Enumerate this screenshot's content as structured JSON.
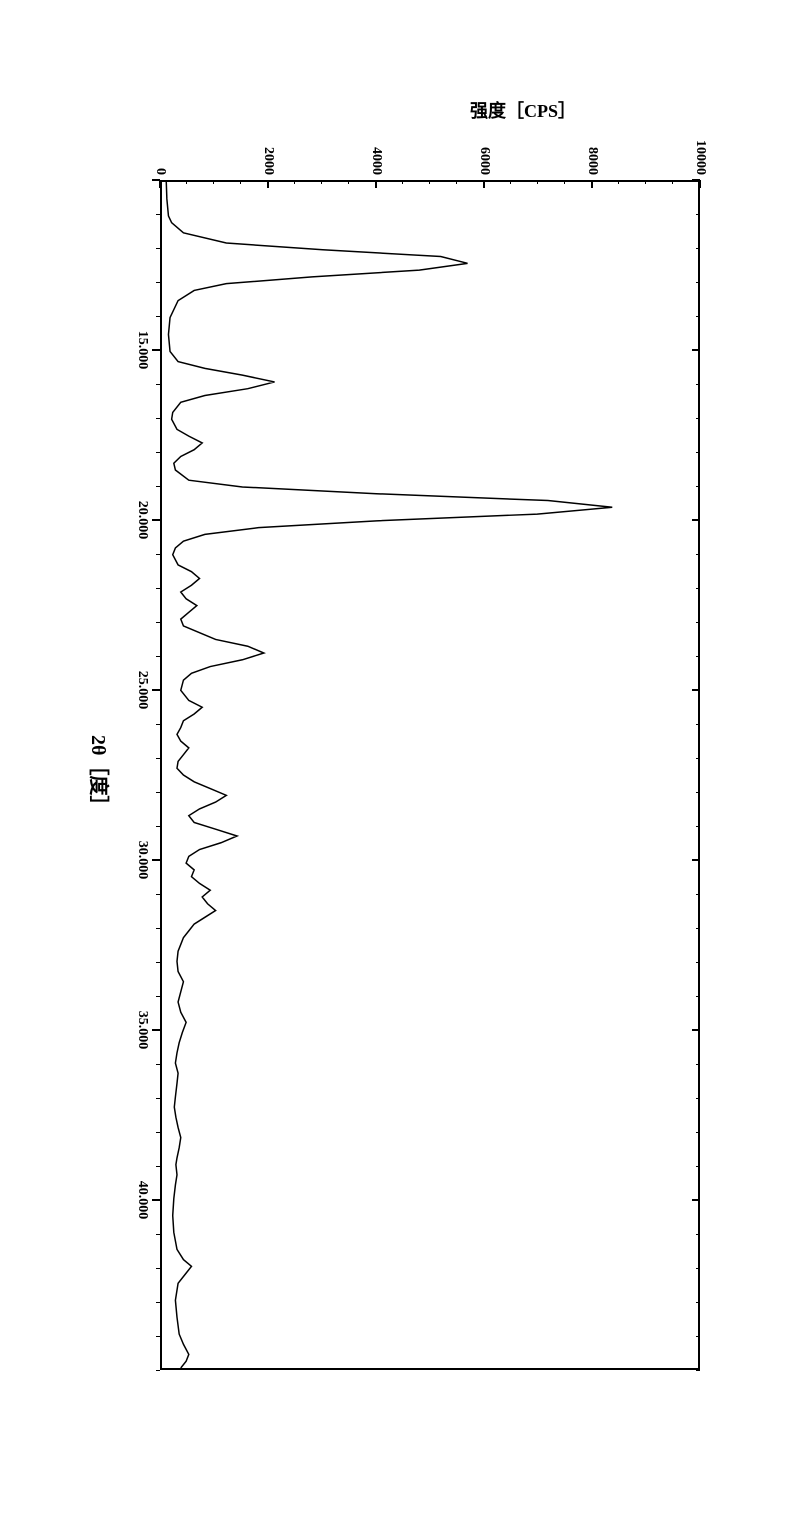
{
  "chart": {
    "type": "line",
    "xlabel": "2θ［度］",
    "ylabel": "强度［CPS］",
    "xlim": [
      10,
      45
    ],
    "ylim": [
      0,
      10000
    ],
    "xtick_major": [
      10,
      15,
      20,
      25,
      30,
      35,
      40
    ],
    "xtick_labels": [
      "",
      "15.000",
      "20.000",
      "25.000",
      "30.000",
      "35.000",
      "40.000"
    ],
    "ytick_major": [
      0,
      2000,
      4000,
      6000,
      8000,
      10000
    ],
    "ytick_labels": [
      "0",
      "2000",
      "4000",
      "6000",
      "8000",
      "10000"
    ],
    "line_color": "#000000",
    "background_color": "#ffffff",
    "border_color": "#000000",
    "line_width": 1.5,
    "xticks_minor_step": 1,
    "yticks_minor_step": 500,
    "data": [
      [
        10.0,
        80
      ],
      [
        10.5,
        90
      ],
      [
        11.0,
        120
      ],
      [
        11.2,
        180
      ],
      [
        11.5,
        400
      ],
      [
        11.8,
        1200
      ],
      [
        12.0,
        3000
      ],
      [
        12.2,
        5200
      ],
      [
        12.4,
        5700
      ],
      [
        12.6,
        4800
      ],
      [
        12.8,
        2800
      ],
      [
        13.0,
        1200
      ],
      [
        13.2,
        600
      ],
      [
        13.5,
        300
      ],
      [
        14.0,
        150
      ],
      [
        14.5,
        120
      ],
      [
        15.0,
        150
      ],
      [
        15.3,
        300
      ],
      [
        15.5,
        800
      ],
      [
        15.7,
        1500
      ],
      [
        15.9,
        2100
      ],
      [
        16.1,
        1600
      ],
      [
        16.3,
        800
      ],
      [
        16.5,
        350
      ],
      [
        16.8,
        200
      ],
      [
        17.0,
        180
      ],
      [
        17.3,
        280
      ],
      [
        17.5,
        500
      ],
      [
        17.7,
        750
      ],
      [
        17.9,
        600
      ],
      [
        18.1,
        350
      ],
      [
        18.3,
        220
      ],
      [
        18.5,
        250
      ],
      [
        18.8,
        500
      ],
      [
        19.0,
        1500
      ],
      [
        19.2,
        4000
      ],
      [
        19.4,
        7200
      ],
      [
        19.6,
        8400
      ],
      [
        19.8,
        7000
      ],
      [
        20.0,
        4000
      ],
      [
        20.2,
        1800
      ],
      [
        20.4,
        800
      ],
      [
        20.6,
        400
      ],
      [
        20.8,
        250
      ],
      [
        21.0,
        200
      ],
      [
        21.3,
        300
      ],
      [
        21.5,
        550
      ],
      [
        21.7,
        700
      ],
      [
        21.9,
        550
      ],
      [
        22.1,
        350
      ],
      [
        22.3,
        450
      ],
      [
        22.5,
        650
      ],
      [
        22.7,
        500
      ],
      [
        22.9,
        350
      ],
      [
        23.1,
        400
      ],
      [
        23.3,
        700
      ],
      [
        23.5,
        1000
      ],
      [
        23.7,
        1600
      ],
      [
        23.9,
        1900
      ],
      [
        24.1,
        1500
      ],
      [
        24.3,
        900
      ],
      [
        24.5,
        550
      ],
      [
        24.7,
        400
      ],
      [
        25.0,
        350
      ],
      [
        25.3,
        500
      ],
      [
        25.5,
        750
      ],
      [
        25.7,
        600
      ],
      [
        25.9,
        400
      ],
      [
        26.1,
        350
      ],
      [
        26.3,
        280
      ],
      [
        26.5,
        350
      ],
      [
        26.7,
        500
      ],
      [
        26.9,
        400
      ],
      [
        27.1,
        300
      ],
      [
        27.3,
        280
      ],
      [
        27.5,
        400
      ],
      [
        27.7,
        600
      ],
      [
        27.9,
        900
      ],
      [
        28.1,
        1200
      ],
      [
        28.3,
        1000
      ],
      [
        28.5,
        700
      ],
      [
        28.7,
        500
      ],
      [
        28.9,
        600
      ],
      [
        29.1,
        1000
      ],
      [
        29.3,
        1400
      ],
      [
        29.5,
        1100
      ],
      [
        29.7,
        700
      ],
      [
        29.9,
        500
      ],
      [
        30.1,
        450
      ],
      [
        30.3,
        600
      ],
      [
        30.5,
        550
      ],
      [
        30.7,
        700
      ],
      [
        30.9,
        900
      ],
      [
        31.1,
        750
      ],
      [
        31.3,
        850
      ],
      [
        31.5,
        1000
      ],
      [
        31.7,
        800
      ],
      [
        31.9,
        600
      ],
      [
        32.1,
        500
      ],
      [
        32.3,
        400
      ],
      [
        32.5,
        350
      ],
      [
        32.7,
        300
      ],
      [
        33.0,
        280
      ],
      [
        33.3,
        300
      ],
      [
        33.6,
        400
      ],
      [
        33.9,
        350
      ],
      [
        34.2,
        300
      ],
      [
        34.5,
        350
      ],
      [
        34.8,
        450
      ],
      [
        35.1,
        380
      ],
      [
        35.4,
        320
      ],
      [
        35.7,
        280
      ],
      [
        36.0,
        250
      ],
      [
        36.3,
        300
      ],
      [
        36.6,
        280
      ],
      [
        37.0,
        250
      ],
      [
        37.3,
        230
      ],
      [
        37.6,
        260
      ],
      [
        37.9,
        300
      ],
      [
        38.2,
        350
      ],
      [
        38.5,
        320
      ],
      [
        38.8,
        280
      ],
      [
        39.0,
        260
      ],
      [
        39.3,
        280
      ],
      [
        39.6,
        250
      ],
      [
        40.0,
        220
      ],
      [
        40.5,
        200
      ],
      [
        41.0,
        220
      ],
      [
        41.5,
        280
      ],
      [
        41.8,
        400
      ],
      [
        42.0,
        550
      ],
      [
        42.2,
        450
      ],
      [
        42.5,
        300
      ],
      [
        43.0,
        250
      ],
      [
        43.5,
        280
      ],
      [
        44.0,
        320
      ],
      [
        44.3,
        400
      ],
      [
        44.6,
        500
      ],
      [
        44.8,
        450
      ],
      [
        45.0,
        350
      ]
    ]
  }
}
